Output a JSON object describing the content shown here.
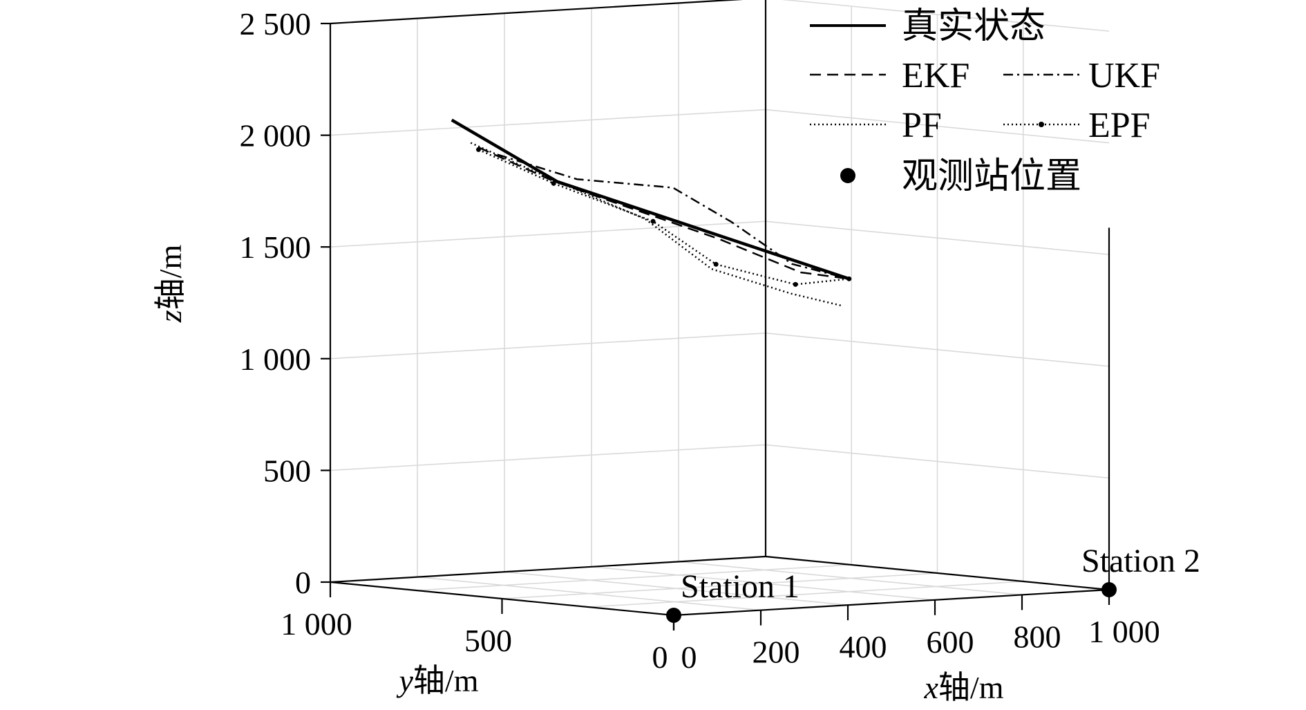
{
  "chart_data": {
    "type": "line",
    "projection": "3d",
    "grid": true,
    "legend_position": "top-right",
    "xlabel": {
      "var": "x",
      "rest": "轴/m"
    },
    "ylabel": {
      "var": "y",
      "rest": "轴/m"
    },
    "zlabel": {
      "var": "z",
      "rest": "轴/m"
    },
    "xlim": [
      0,
      1000
    ],
    "ylim": [
      0,
      1000
    ],
    "zlim": [
      0,
      2500
    ],
    "x_ticks": [
      0,
      200,
      400,
      600,
      800,
      1000
    ],
    "x_tick_labels": [
      "0",
      "200",
      "400",
      "600",
      "800",
      "1 000"
    ],
    "y_ticks": [
      0,
      500,
      1000
    ],
    "y_tick_labels": [
      "0",
      "500",
      "1 000"
    ],
    "z_ticks": [
      0,
      500,
      1000,
      1500,
      2000,
      2500
    ],
    "z_tick_labels": [
      "0",
      "500",
      "1 000",
      "1 500",
      "2 000",
      "2 500"
    ],
    "series": [
      {
        "name": "真实状态",
        "style": "solid",
        "points": [
          [
            200,
            900,
            2060
          ],
          [
            300,
            720,
            1800
          ],
          [
            600,
            250,
            1400
          ]
        ]
      },
      {
        "name": "EKF",
        "style": "dashed",
        "points": [
          [
            230,
            860,
            1940
          ],
          [
            300,
            730,
            1800
          ],
          [
            400,
            600,
            1670
          ],
          [
            480,
            480,
            1560
          ],
          [
            560,
            340,
            1420
          ],
          [
            600,
            250,
            1400
          ]
        ]
      },
      {
        "name": "UKF",
        "style": "dashdot",
        "points": [
          [
            250,
            830,
            1910
          ],
          [
            330,
            700,
            1810
          ],
          [
            440,
            560,
            1780
          ],
          [
            480,
            440,
            1640
          ],
          [
            540,
            340,
            1460
          ],
          [
            600,
            250,
            1400
          ]
        ]
      },
      {
        "name": "PF",
        "style": "dotted",
        "points": [
          [
            220,
            870,
            1960
          ],
          [
            300,
            720,
            1800
          ],
          [
            400,
            590,
            1640
          ],
          [
            450,
            460,
            1430
          ],
          [
            530,
            330,
            1330
          ],
          [
            590,
            260,
            1280
          ]
        ]
      },
      {
        "name": "EPF",
        "style": "dotted-marker",
        "points": [
          [
            230,
            860,
            1930
          ],
          [
            300,
            730,
            1790
          ],
          [
            410,
            580,
            1630
          ],
          [
            460,
            460,
            1450
          ],
          [
            540,
            330,
            1370
          ],
          [
            600,
            250,
            1400
          ]
        ]
      }
    ],
    "stations": {
      "legend_label": "观测站位置",
      "points": [
        {
          "label": "Station 1",
          "x": 0,
          "y": 0,
          "z": 0
        },
        {
          "label": "Station 2",
          "x": 1000,
          "y": 0,
          "z": 0
        }
      ]
    }
  }
}
